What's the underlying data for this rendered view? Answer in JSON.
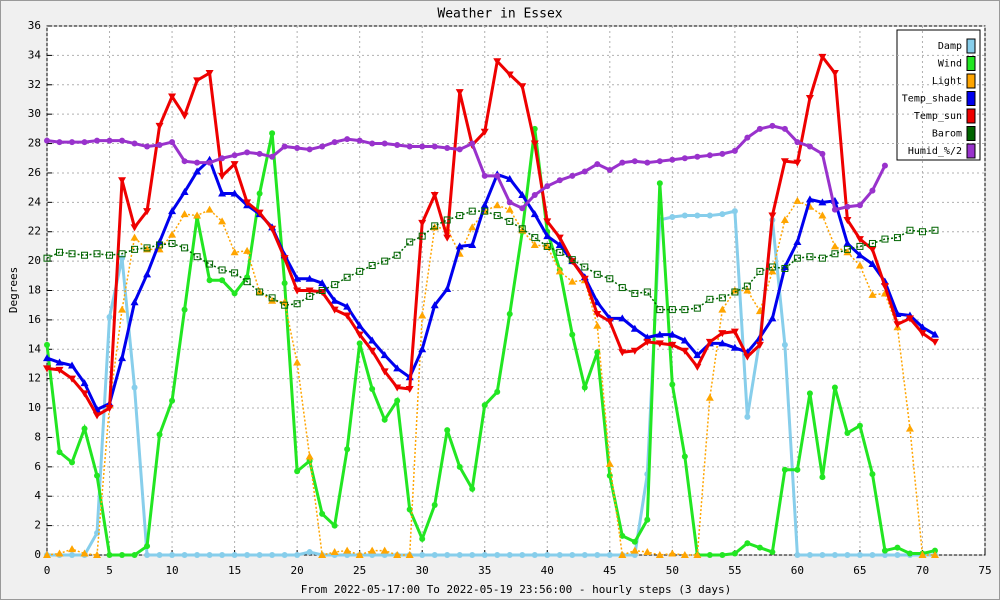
{
  "chart_data": {
    "type": "line",
    "title": "Weather in Essex",
    "y_label": "Degrees",
    "x_label": "From 2022-05-17:00 To 2022-05-19 23:56:00 - hourly steps (3 days)",
    "xlim": [
      0,
      75
    ],
    "xticks": [
      0,
      5,
      10,
      15,
      20,
      25,
      30,
      35,
      40,
      45,
      50,
      55,
      60,
      65,
      70,
      75
    ],
    "ylim": [
      0,
      36
    ],
    "yticks": [
      0,
      2,
      4,
      6,
      8,
      10,
      12,
      14,
      16,
      18,
      20,
      22,
      24,
      26,
      28,
      30,
      32,
      34,
      36
    ],
    "grid": true,
    "legend": "top-right",
    "x": [
      0,
      1,
      2,
      3,
      4,
      5,
      6,
      7,
      8,
      9,
      10,
      11,
      12,
      13,
      14,
      15,
      16,
      17,
      18,
      19,
      20,
      21,
      22,
      23,
      24,
      25,
      26,
      27,
      28,
      29,
      30,
      31,
      32,
      33,
      34,
      35,
      36,
      37,
      38,
      39,
      40,
      41,
      42,
      43,
      44,
      45,
      46,
      47,
      48,
      49,
      50,
      51,
      52,
      53,
      54,
      55,
      56,
      57,
      58,
      59,
      60,
      61,
      62,
      63,
      64,
      65,
      66,
      67,
      68,
      69,
      70,
      71
    ],
    "series": [
      {
        "name": "Damp",
        "color": "#87ceeb",
        "values": [
          0,
          0,
          0,
          0,
          1.5,
          16.2,
          20.2,
          11.4,
          0,
          0,
          0,
          0,
          0,
          0,
          0,
          0,
          0,
          0,
          0,
          0,
          0,
          0.2,
          0,
          0,
          0,
          0,
          0,
          0,
          0,
          0,
          0,
          0,
          0,
          0,
          0,
          0,
          0,
          0,
          0,
          0,
          0,
          0,
          0,
          0,
          0,
          0,
          0,
          0,
          5.5,
          22.8,
          23,
          23.1,
          23.1,
          23.1,
          23.2,
          23.4,
          9.4,
          14.7,
          22.8,
          14.3,
          0,
          0,
          0,
          0,
          0,
          0,
          0,
          0,
          0,
          0,
          0,
          0
        ]
      },
      {
        "name": "Wind",
        "color": "#22e622",
        "values": [
          14.3,
          7,
          6.3,
          8.6,
          5.4,
          0,
          0,
          0,
          0.6,
          8.2,
          10.5,
          16.7,
          23,
          18.7,
          18.7,
          17.8,
          18.9,
          24.6,
          28.7,
          18.5,
          5.7,
          6.4,
          2.8,
          2,
          7.2,
          14.4,
          11.3,
          9.2,
          10.5,
          3.1,
          1.1,
          3.4,
          8.5,
          6,
          4.5,
          10.2,
          11.1,
          16.4,
          22,
          29,
          22,
          19.4,
          15,
          11.4,
          13.8,
          5.4,
          1.3,
          0.9,
          2.4,
          25.3,
          11.6,
          6.7,
          0,
          0,
          0,
          0.1,
          0.8,
          0.5,
          0.2,
          5.8,
          5.8,
          11,
          5.3,
          11.4,
          8.3,
          8.8,
          5.5,
          0.3,
          0.5,
          0.1,
          0.1,
          0.3
        ]
      },
      {
        "name": "Light",
        "color": "#ffa500",
        "values": [
          0,
          0.1,
          0.4,
          0.1,
          0,
          10.2,
          16.7,
          21.6,
          20.8,
          20.8,
          21.8,
          23.2,
          23.1,
          23.5,
          22.7,
          20.6,
          20.7,
          17.9,
          17.3,
          17.2,
          13.1,
          6.7,
          0,
          0.2,
          0.3,
          0,
          0.3,
          0.3,
          0,
          0,
          16.3,
          22.3,
          22.2,
          20.5,
          22.3,
          23.4,
          23.8,
          23.5,
          22.1,
          21.1,
          21,
          19.3,
          18.6,
          18.7,
          15.6,
          6.2,
          0,
          0.3,
          0.2,
          0,
          0.1,
          0,
          0,
          10.7,
          16.7,
          18,
          18,
          16.6,
          19.3,
          22.8,
          24.1,
          23.7,
          23.1,
          21,
          20.6,
          19.7,
          17.7,
          17.8,
          15.5,
          8.6,
          0,
          0
        ]
      },
      {
        "name": "Temp_shade",
        "color": "#0000ee",
        "values": [
          13.4,
          13.1,
          12.9,
          11.7,
          9.9,
          10.3,
          13.4,
          17.2,
          19.1,
          21.3,
          23.4,
          24.7,
          26.1,
          26.9,
          24.6,
          24.6,
          23.8,
          23.2,
          22.3,
          20.4,
          18.8,
          18.8,
          18.5,
          17.3,
          16.9,
          15.6,
          14.6,
          13.6,
          12.7,
          12.1,
          14,
          17,
          18.1,
          21,
          21.1,
          23.8,
          25.9,
          25.6,
          24.5,
          23.2,
          21.7,
          21.1,
          20,
          18.9,
          17.2,
          16.1,
          16.1,
          15.4,
          14.8,
          15,
          15,
          14.6,
          13.6,
          14.4,
          14.4,
          14.1,
          13.8,
          14.8,
          16.1,
          19.6,
          21.3,
          24.2,
          24,
          24.1,
          21.2,
          20.4,
          19.8,
          18.6,
          16.4,
          16.3,
          15.5,
          15
        ]
      },
      {
        "name": "Temp_sun",
        "color": "#ee0000",
        "values": [
          12.7,
          12.6,
          12,
          11,
          9.5,
          10,
          25.5,
          22.3,
          23.4,
          29.2,
          31.2,
          29.9,
          32.3,
          32.8,
          25.8,
          26.6,
          24,
          23.3,
          22.2,
          20.2,
          18,
          18,
          17.9,
          16.7,
          16.3,
          15,
          13.9,
          12.5,
          11.4,
          11.3,
          22.6,
          24.5,
          21.6,
          31.5,
          27.9,
          28.8,
          33.6,
          32.7,
          31.9,
          28,
          22.7,
          21.6,
          20,
          18.8,
          16.4,
          15.9,
          13.8,
          13.9,
          14.5,
          14.4,
          14.3,
          13.9,
          12.8,
          14.5,
          15.1,
          15.2,
          13.5,
          14.3,
          23.1,
          26.8,
          26.7,
          31.1,
          33.9,
          32.8,
          22.8,
          21.5,
          20.8,
          18.3,
          15.7,
          16.1,
          15.1,
          14.5
        ]
      },
      {
        "name": "Barom",
        "color": "#006400",
        "values": [
          20.2,
          20.6,
          20.5,
          20.4,
          20.5,
          20.4,
          20.5,
          20.8,
          20.9,
          21.1,
          21.2,
          20.9,
          20.3,
          19.8,
          19.4,
          19.2,
          18.6,
          17.9,
          17.5,
          17,
          17.1,
          17.6,
          18,
          18.4,
          18.9,
          19.3,
          19.7,
          20,
          20.4,
          21.3,
          21.7,
          22.4,
          22.8,
          23.1,
          23.4,
          23.4,
          23.1,
          22.7,
          22.2,
          21.6,
          21,
          20.6,
          20.1,
          19.6,
          19.1,
          18.8,
          18.2,
          17.8,
          17.9,
          16.7,
          16.7,
          16.7,
          16.8,
          17.4,
          17.5,
          17.9,
          18.3,
          19.3,
          19.6,
          19.5,
          20.2,
          20.3,
          20.2,
          20.5,
          20.8,
          21,
          21.2,
          21.5,
          21.6,
          22.1,
          22,
          22.1
        ]
      },
      {
        "name": "Humid_%/2",
        "color": "#9932cc",
        "values": [
          28.2,
          28.1,
          28.1,
          28.1,
          28.2,
          28.2,
          28.2,
          28,
          27.8,
          27.9,
          28.1,
          26.8,
          26.7,
          26.7,
          27,
          27.2,
          27.4,
          27.3,
          27.1,
          27.8,
          27.7,
          27.6,
          27.8,
          28.1,
          28.3,
          28.2,
          28,
          28,
          27.9,
          27.8,
          27.8,
          27.8,
          27.7,
          27.6,
          28,
          25.8,
          25.8,
          24,
          23.6,
          24.5,
          25.1,
          25.5,
          25.8,
          26.1,
          26.6,
          26.2,
          26.7,
          26.8,
          26.7,
          26.8,
          26.9,
          27,
          27.1,
          27.2,
          27.3,
          27.5,
          28.4,
          29,
          29.2,
          29,
          28.1,
          27.8,
          27.3,
          23.5,
          23.7,
          23.8,
          24.8,
          26.5,
          null,
          null,
          null,
          null
        ]
      }
    ]
  }
}
